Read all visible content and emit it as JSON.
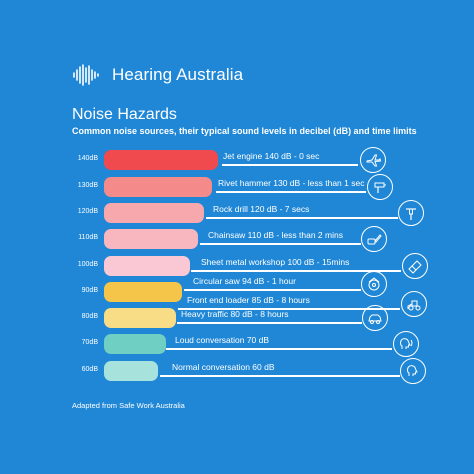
{
  "brand": {
    "name": "Hearing Australia",
    "logo_icon": "soundwave-icon"
  },
  "title": "Noise Hazards",
  "subtitle": "Common noise sources, their typical sound levels in decibel (dB) and time limits",
  "hazards": [
    {
      "level": "140dB",
      "label": "Jet engine 140 dB - 0 sec",
      "color": "#f04a4f",
      "icon": "plane-icon"
    },
    {
      "level": "130dB",
      "label": "Rivet hammer 130 dB - less than 1 sec",
      "color": "#f48a8a",
      "icon": "rivet-hammer-icon"
    },
    {
      "level": "120dB",
      "label": "Rock drill 120 dB - 7 secs",
      "color": "#f6a8ac",
      "icon": "rock-drill-icon"
    },
    {
      "level": "110dB",
      "label": "Chainsaw 110 dB - less than 2 mins",
      "color": "#f8b7bf",
      "icon": "chainsaw-icon"
    },
    {
      "level": "100dB",
      "label": "Sheet metal workshop 100 dB - 15mins",
      "color": "#f9c8d4",
      "icon": "sheet-metal-icon"
    },
    {
      "level": "90dB",
      "label": "Circular saw 94 dB - 1 hour",
      "color": "#f5c54a",
      "icon": "circular-saw-icon"
    },
    {
      "level": "",
      "label": "Front end loader 85 dB - 8 hours",
      "color": "",
      "icon": "loader-icon"
    },
    {
      "level": "80dB",
      "label": "Heavy traffic 80 dB - 8 hours",
      "color": "#f8dd86",
      "icon": "car-icon"
    },
    {
      "level": "70dB",
      "label": "Loud conversation 70 dB",
      "color": "#6fcfc2",
      "icon": "loud-talk-icon"
    },
    {
      "level": "60dB",
      "label": "Normal conversation 60 dB",
      "color": "#a8e2dd",
      "icon": "talk-icon"
    }
  ],
  "source": "Adapted from Safe Work Australia"
}
